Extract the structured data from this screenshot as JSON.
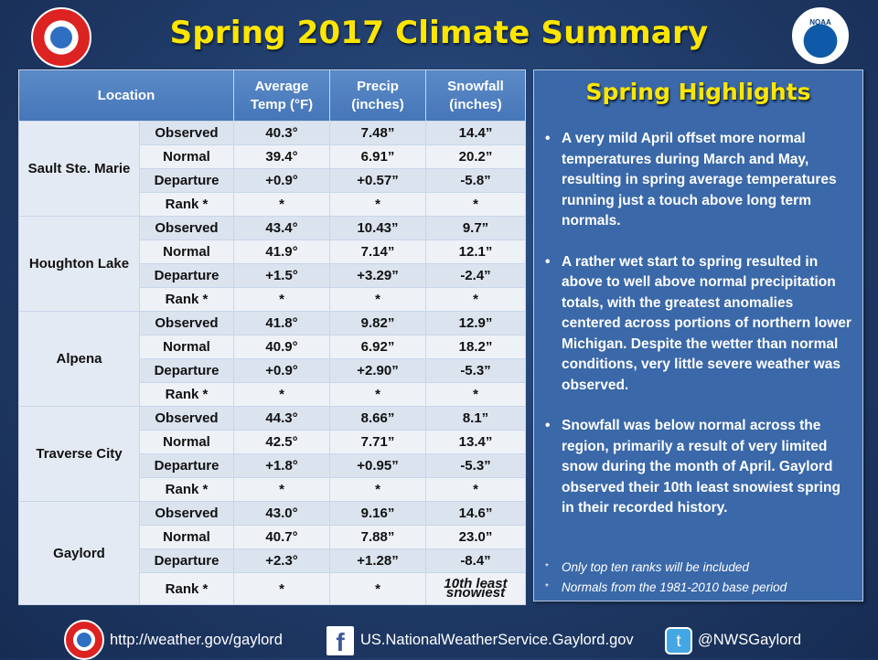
{
  "title": "Spring 2017 Climate Summary",
  "logos": {
    "noaa_text": "NOAA"
  },
  "table": {
    "headers": {
      "location": "Location",
      "avg_temp": [
        "Average",
        "Temp (°F)"
      ],
      "precip": [
        "Precip",
        "(inches)"
      ],
      "snowfall": [
        "Snowfall",
        "(inches)"
      ]
    },
    "stations": [
      {
        "name": "Sault Ste. Marie",
        "rows": [
          {
            "label": "Observed",
            "temp": "40.3°",
            "precip": "7.48”",
            "snow": "14.4”"
          },
          {
            "label": "Normal",
            "temp": "39.4°",
            "precip": "6.91”",
            "snow": "20.2”"
          },
          {
            "label": "Departure",
            "temp": "+0.9°",
            "precip": "+0.57”",
            "snow": "-5.8”"
          },
          {
            "label": "Rank *",
            "temp": "*",
            "precip": "*",
            "snow": "*"
          }
        ]
      },
      {
        "name": "Houghton Lake",
        "rows": [
          {
            "label": "Observed",
            "temp": "43.4°",
            "precip": "10.43”",
            "snow": "9.7”"
          },
          {
            "label": "Normal",
            "temp": "41.9°",
            "precip": "7.14”",
            "snow": "12.1”"
          },
          {
            "label": "Departure",
            "temp": "+1.5°",
            "precip": "+3.29”",
            "snow": "-2.4”"
          },
          {
            "label": "Rank *",
            "temp": "*",
            "precip": "*",
            "snow": "*"
          }
        ]
      },
      {
        "name": "Alpena",
        "rows": [
          {
            "label": "Observed",
            "temp": "41.8°",
            "precip": "9.82”",
            "snow": "12.9”"
          },
          {
            "label": "Normal",
            "temp": "40.9°",
            "precip": "6.92”",
            "snow": "18.2”"
          },
          {
            "label": "Departure",
            "temp": "+0.9°",
            "precip": "+2.90”",
            "snow": "-5.3”"
          },
          {
            "label": "Rank *",
            "temp": "*",
            "precip": "*",
            "snow": "*"
          }
        ]
      },
      {
        "name": "Traverse City",
        "rows": [
          {
            "label": "Observed",
            "temp": "44.3°",
            "precip": "8.66”",
            "snow": "8.1”"
          },
          {
            "label": "Normal",
            "temp": "42.5°",
            "precip": "7.71”",
            "snow": "13.4”"
          },
          {
            "label": "Departure",
            "temp": "+1.8°",
            "precip": "+0.95”",
            "snow": "-5.3”"
          },
          {
            "label": "Rank *",
            "temp": "*",
            "precip": "*",
            "snow": "*"
          }
        ]
      },
      {
        "name": "Gaylord",
        "rows": [
          {
            "label": "Observed",
            "temp": "43.0°",
            "precip": "9.16”",
            "snow": "14.6”"
          },
          {
            "label": "Normal",
            "temp": "40.7°",
            "precip": "7.88”",
            "snow": "23.0”"
          },
          {
            "label": "Departure",
            "temp": "+2.3°",
            "precip": "+1.28”",
            "snow": "-8.4”"
          },
          {
            "label": "Rank *",
            "temp": "*",
            "precip": "*",
            "snow": "10th least snowiest"
          }
        ]
      }
    ]
  },
  "highlights": {
    "title": "Spring Highlights",
    "bullets": [
      "A very mild April offset more normal temperatures during March and May, resulting in spring average temperatures running just a touch above long term normals.",
      "A rather wet start to spring resulted in above to well above normal precipitation totals, with the greatest anomalies centered across portions of northern lower Michigan. Despite the wetter than normal conditions, very little severe weather was observed.",
      "Snowfall was below normal across the region, primarily a result of very limited snow during the month of April. Gaylord observed their 10th least snowiest spring in their recorded history."
    ],
    "notes": [
      "Only top ten ranks will be included",
      "Normals from the 1981-2010 base period"
    ]
  },
  "footer": {
    "website": "http://weather.gov/gaylord",
    "facebook": "US.NationalWeatherService.Gaylord.gov",
    "twitter": "@NWSGaylord",
    "facebook_glyph": "f",
    "twitter_glyph": "t"
  }
}
